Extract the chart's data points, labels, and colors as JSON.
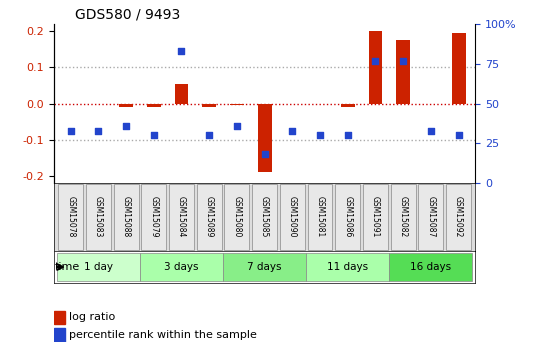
{
  "title": "GDS580 / 9493",
  "samples": [
    "GSM15078",
    "GSM15083",
    "GSM15088",
    "GSM15079",
    "GSM15084",
    "GSM15089",
    "GSM15080",
    "GSM15085",
    "GSM15090",
    "GSM15081",
    "GSM15086",
    "GSM15091",
    "GSM15082",
    "GSM15087",
    "GSM15092"
  ],
  "log_ratio": [
    0.0,
    0.0,
    -0.01,
    -0.01,
    0.055,
    -0.01,
    -0.005,
    -0.19,
    0.0,
    0.0,
    -0.01,
    0.2,
    0.175,
    0.0,
    0.195
  ],
  "percentile": [
    33,
    33,
    36,
    30,
    83,
    30,
    36,
    18,
    33,
    30,
    30,
    77,
    77,
    33,
    30
  ],
  "groups": [
    {
      "label": "1 day",
      "indices": [
        0,
        1,
        2
      ],
      "color": "#ccffcc"
    },
    {
      "label": "3 days",
      "indices": [
        3,
        4,
        5
      ],
      "color": "#aaffaa"
    },
    {
      "label": "7 days",
      "indices": [
        6,
        7,
        8
      ],
      "color": "#88ee88"
    },
    {
      "label": "11 days",
      "indices": [
        9,
        10,
        11
      ],
      "color": "#aaffaa"
    },
    {
      "label": "16 days",
      "indices": [
        12,
        13,
        14
      ],
      "color": "#55dd55"
    }
  ],
  "ylim": [
    -0.22,
    0.22
  ],
  "yticks_left": [
    -0.2,
    -0.1,
    0.0,
    0.1,
    0.2
  ],
  "yticks_right": [
    0,
    25,
    50,
    75,
    100
  ],
  "bar_color": "#cc2200",
  "dot_color": "#2244cc",
  "dot_line_color": "#cc0000",
  "background_color": "#ffffff",
  "grid_color": "#aaaaaa"
}
